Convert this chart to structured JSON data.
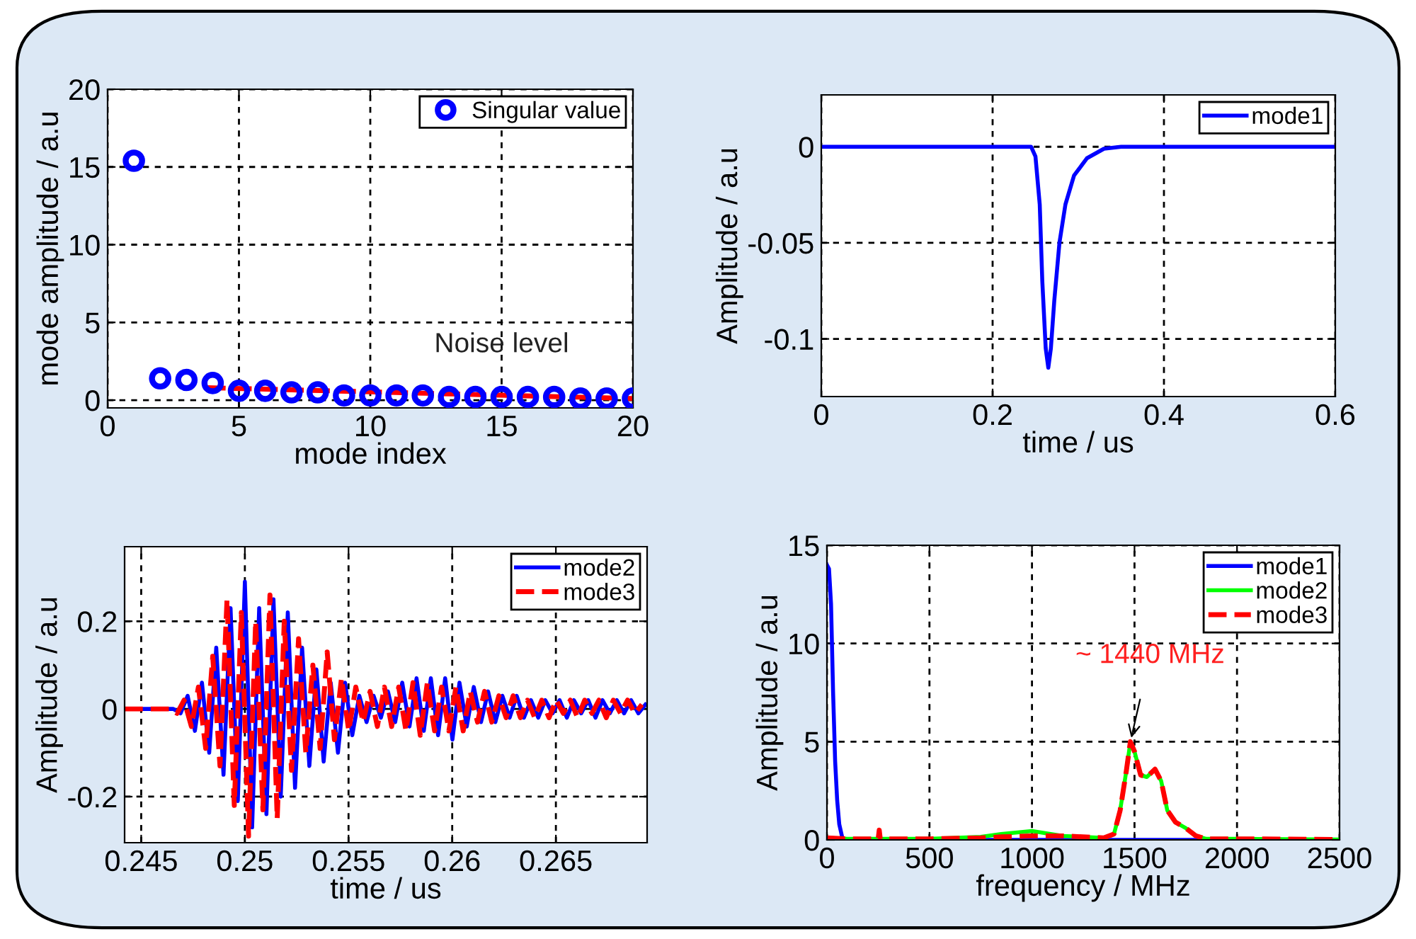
{
  "chart_data": [
    {
      "type": "scatter",
      "xlabel": "mode index",
      "ylabel": "mode amplitude / a.u",
      "xlim": [
        0,
        20
      ],
      "ylim": [
        -0.5,
        20
      ],
      "xticks": [
        0,
        5,
        10,
        15,
        20
      ],
      "yticks": [
        0,
        5,
        10,
        15,
        20
      ],
      "grid": true,
      "legend": "top right",
      "annotations": [
        {
          "text": "Noise level",
          "x": 15,
          "y": 0.3
        }
      ],
      "series": [
        {
          "name": "Singular value",
          "color": "#0000ff",
          "marker": "circle",
          "x": [
            1,
            2,
            3,
            4,
            5,
            6,
            7,
            8,
            9,
            10,
            11,
            12,
            13,
            14,
            15,
            16,
            17,
            18,
            19,
            20
          ],
          "values": [
            15.4,
            1.4,
            1.3,
            1.1,
            0.6,
            0.6,
            0.5,
            0.5,
            0.3,
            0.3,
            0.3,
            0.3,
            0.2,
            0.2,
            0.2,
            0.2,
            0.2,
            0.1,
            0.1,
            0.1
          ]
        },
        {
          "type": "line",
          "color": "#ff0000",
          "line_style": "dashed",
          "x": [
            3.8,
            20
          ],
          "values": [
            0.8,
            0.1
          ]
        }
      ]
    },
    {
      "type": "line",
      "xlabel": "time / us",
      "ylabel": "Amplitude / a.u",
      "xlim": [
        0,
        0.6
      ],
      "ylim": [
        -0.13,
        0.027
      ],
      "xticks": [
        0,
        0.2,
        0.4,
        0.6
      ],
      "yticks": [
        -0.1,
        -0.05,
        0
      ],
      "grid": true,
      "legend": "top right",
      "series": [
        {
          "name": "mode1",
          "color": "#0000ff",
          "x": [
            0,
            0.245,
            0.25,
            0.255,
            0.258,
            0.262,
            0.265,
            0.268,
            0.272,
            0.278,
            0.285,
            0.295,
            0.31,
            0.33,
            0.35,
            0.6
          ],
          "values": [
            0,
            0,
            -0.005,
            -0.03,
            -0.07,
            -0.105,
            -0.115,
            -0.105,
            -0.08,
            -0.05,
            -0.03,
            -0.015,
            -0.006,
            -0.001,
            0,
            0
          ]
        }
      ]
    },
    {
      "type": "line",
      "xlabel": "time / us",
      "ylabel": "Amplitude / a.u",
      "xlim": [
        0.2442,
        0.2694
      ],
      "ylim": [
        -0.305,
        0.37
      ],
      "xticks": [
        0.245,
        0.25,
        0.255,
        0.26,
        0.265
      ],
      "yticks": [
        -0.2,
        0,
        0.2
      ],
      "grid": true,
      "legend": "top right",
      "series": [
        {
          "name": "mode2",
          "color": "#0000ff",
          "line_style": "solid",
          "x": [
            0.2442,
            0.24655,
            0.2469,
            0.24724,
            0.24759,
            0.24793,
            0.24828,
            0.24862,
            0.24897,
            0.24931,
            0.24966,
            0.25,
            0.25035,
            0.25069,
            0.25104,
            0.25138,
            0.25173,
            0.25207,
            0.25242,
            0.25276,
            0.25311,
            0.25345,
            0.2538,
            0.25414,
            0.25449,
            0.25483,
            0.25518,
            0.25552,
            0.25587,
            0.25621,
            0.25656,
            0.2569,
            0.25725,
            0.25759,
            0.25794,
            0.25828,
            0.25863,
            0.25897,
            0.25932,
            0.25966,
            0.26001,
            0.26035,
            0.2607,
            0.26104,
            0.26139,
            0.26173,
            0.26208,
            0.26242,
            0.26277,
            0.26311,
            0.26346,
            0.2638,
            0.26415,
            0.26449,
            0.26484,
            0.26518,
            0.26553,
            0.26587,
            0.26622,
            0.26656,
            0.26691,
            0.26725,
            0.2676,
            0.26794,
            0.26829,
            0.26863,
            0.26898,
            0.26932
          ],
          "values": [
            0,
            0,
            -0.01,
            0.03,
            -0.05,
            0.06,
            -0.1,
            0.14,
            -0.15,
            0.23,
            -0.21,
            0.29,
            -0.27,
            0.23,
            -0.24,
            0.25,
            -0.2,
            0.22,
            -0.18,
            0.14,
            -0.13,
            0.09,
            -0.12,
            0.06,
            -0.1,
            0.06,
            -0.06,
            0.03,
            -0.03,
            0.03,
            -0.02,
            0.04,
            -0.03,
            0.06,
            -0.04,
            0.07,
            -0.05,
            0.07,
            -0.06,
            0.07,
            -0.07,
            0.06,
            -0.04,
            0.05,
            -0.03,
            0.04,
            -0.03,
            0.03,
            -0.02,
            0.03,
            -0.02,
            0.02,
            -0.02,
            0.02,
            -0.01,
            0.02,
            -0.02,
            0.02,
            -0.01,
            0.02,
            -0.02,
            0.02,
            -0.01,
            0.02,
            -0.01,
            0.02,
            -0.01,
            0.01
          ]
        },
        {
          "name": "mode3",
          "color": "#ff0000",
          "line_style": "dashed",
          "x": [
            0.2442,
            0.24638,
            0.24673,
            0.24707,
            0.24742,
            0.24776,
            0.24811,
            0.24845,
            0.2488,
            0.24914,
            0.24949,
            0.24983,
            0.25018,
            0.25052,
            0.25087,
            0.25121,
            0.25156,
            0.2519,
            0.25225,
            0.25259,
            0.25294,
            0.25328,
            0.25363,
            0.25397,
            0.25432,
            0.25466,
            0.25501,
            0.25535,
            0.2557,
            0.25604,
            0.25639,
            0.25673,
            0.25708,
            0.25742,
            0.25777,
            0.25811,
            0.25846,
            0.2588,
            0.25915,
            0.25949,
            0.25984,
            0.26018,
            0.26053,
            0.26087,
            0.26122,
            0.26156,
            0.26191,
            0.26225,
            0.2626,
            0.26294,
            0.26329,
            0.26363,
            0.26398,
            0.26432,
            0.26467,
            0.26501,
            0.26536,
            0.2657,
            0.26605,
            0.26639,
            0.26674,
            0.26708,
            0.26743,
            0.26777,
            0.26812,
            0.26846,
            0.26881,
            0.26915
          ],
          "values": [
            0,
            0,
            -0.01,
            0.02,
            -0.04,
            0.05,
            -0.09,
            0.12,
            -0.13,
            0.25,
            -0.22,
            0.22,
            -0.29,
            0.2,
            -0.23,
            0.26,
            -0.25,
            0.2,
            -0.14,
            0.16,
            -0.1,
            0.1,
            -0.09,
            0.13,
            -0.07,
            0.07,
            -0.05,
            0.05,
            -0.03,
            0.04,
            -0.04,
            0.05,
            -0.04,
            0.05,
            -0.05,
            0.06,
            -0.06,
            0.06,
            -0.05,
            0.05,
            -0.05,
            0.05,
            -0.05,
            0.04,
            -0.03,
            0.04,
            -0.03,
            0.03,
            -0.02,
            0.03,
            -0.02,
            0.02,
            -0.02,
            0.02,
            -0.02,
            0.02,
            -0.01,
            0.02,
            -0.02,
            0.02,
            -0.01,
            0.02,
            -0.02,
            0.02,
            -0.01,
            0.02,
            -0.01,
            0.01
          ]
        }
      ]
    },
    {
      "type": "line",
      "xlabel": "frequency / MHz",
      "ylabel": "Amplitude / a.u",
      "xlim": [
        0,
        2500
      ],
      "ylim": [
        0,
        15
      ],
      "xticks": [
        0,
        500,
        1000,
        1500,
        2000,
        2500
      ],
      "yticks": [
        0,
        5,
        10,
        15
      ],
      "grid": true,
      "legend": "top right",
      "annotations": [
        {
          "text": "~ 1440 MHz",
          "x": 1480,
          "y": 5
        }
      ],
      "series": [
        {
          "name": "mode1",
          "color": "#0000ff",
          "line_style": "solid",
          "x": [
            0,
            10,
            20,
            30,
            40,
            50,
            60,
            75,
            100,
            2500
          ],
          "values": [
            14,
            13.8,
            12,
            7.5,
            4,
            2,
            0.8,
            0.1,
            0,
            0
          ]
        },
        {
          "name": "mode2",
          "color": "#00ff00",
          "line_style": "solid",
          "x": [
            0,
            100,
            250,
            255,
            260,
            500,
            750,
            850,
            1000,
            1150,
            1350,
            1400,
            1430,
            1460,
            1480,
            1500,
            1530,
            1560,
            1600,
            1630,
            1660,
            1700,
            1750,
            1800,
            1850,
            2000,
            2500
          ],
          "values": [
            0.1,
            0.05,
            0.05,
            null,
            0.05,
            0.05,
            0.15,
            0.3,
            0.45,
            0.2,
            0.1,
            0.3,
            1.5,
            3.5,
            5,
            4.5,
            3.3,
            3.2,
            3.6,
            3,
            1.5,
            0.9,
            0.6,
            0.2,
            0.05,
            0.05,
            0.02
          ]
        },
        {
          "name": "mode3",
          "color": "#ff0000",
          "line_style": "dashed",
          "x": [
            0,
            100,
            250,
            255,
            260,
            500,
            750,
            850,
            1000,
            1150,
            1350,
            1400,
            1430,
            1460,
            1480,
            1500,
            1530,
            1560,
            1600,
            1630,
            1660,
            1700,
            1750,
            1800,
            1850,
            2000,
            2500
          ],
          "values": [
            0.1,
            0.05,
            0.05,
            0.5,
            0.05,
            0.05,
            0.1,
            0.15,
            0.2,
            0.2,
            0.1,
            0.3,
            1.5,
            3.5,
            5,
            4.5,
            3.3,
            3.2,
            3.6,
            3,
            1.5,
            0.9,
            0.6,
            0.2,
            0.05,
            0.05,
            0.02
          ]
        }
      ]
    }
  ]
}
